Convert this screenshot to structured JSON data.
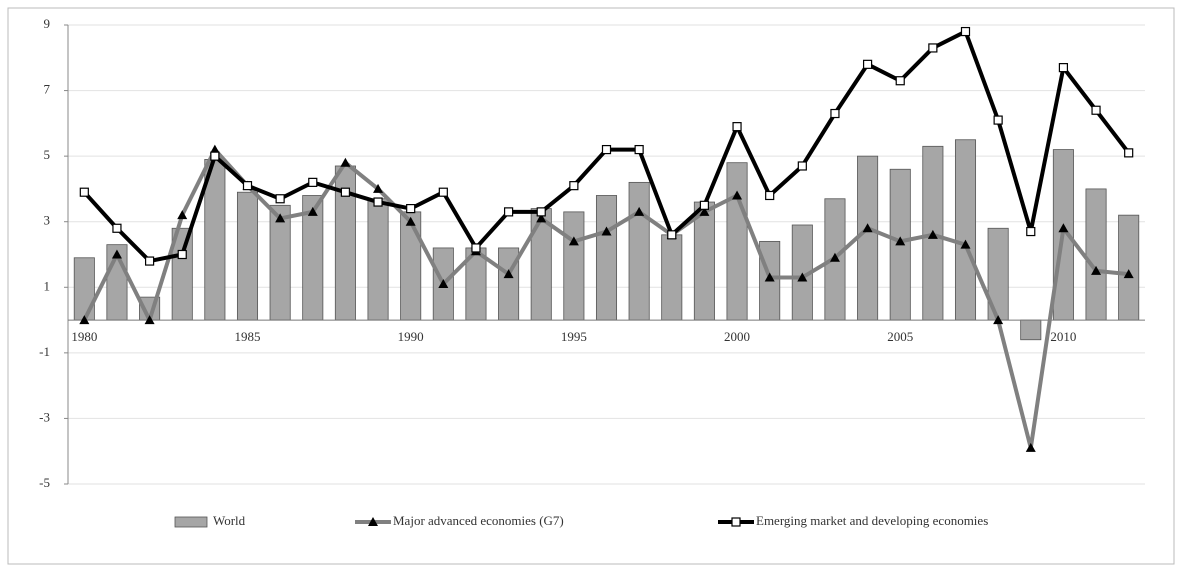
{
  "chart_data": {
    "type": "combo",
    "x": [
      1980,
      1981,
      1982,
      1983,
      1984,
      1985,
      1986,
      1987,
      1988,
      1989,
      1990,
      1991,
      1992,
      1993,
      1994,
      1995,
      1996,
      1997,
      1998,
      1999,
      2000,
      2001,
      2002,
      2003,
      2004,
      2005,
      2006,
      2007,
      2008,
      2009,
      2010,
      2011,
      2012
    ],
    "xlim": [
      1979.5,
      2012.5
    ],
    "xticks": [
      1980,
      1985,
      1990,
      1995,
      2000,
      2005,
      2010
    ],
    "ylim": [
      -5,
      9
    ],
    "yticks": [
      -5,
      -3,
      -1,
      1,
      3,
      5,
      7,
      9
    ],
    "grid": true,
    "series": [
      {
        "name": "World",
        "type": "bar",
        "color": "#a6a6a6",
        "values": [
          1.9,
          2.3,
          0.7,
          2.8,
          4.9,
          3.9,
          3.5,
          3.8,
          4.7,
          3.7,
          3.3,
          2.2,
          2.2,
          2.2,
          3.4,
          3.3,
          3.8,
          4.2,
          2.6,
          3.6,
          4.8,
          2.4,
          2.9,
          3.7,
          5.0,
          4.6,
          5.3,
          5.5,
          2.8,
          -0.6,
          5.2,
          4.0,
          3.2
        ]
      },
      {
        "name": "Major advanced economies (G7)",
        "type": "line",
        "marker": "triangle",
        "color": "#808080",
        "values": [
          0.0,
          2.0,
          0.0,
          3.2,
          5.2,
          4.1,
          3.1,
          3.3,
          4.8,
          4.0,
          3.0,
          1.1,
          2.1,
          1.4,
          3.1,
          2.4,
          2.7,
          3.3,
          2.6,
          3.3,
          3.8,
          1.3,
          1.3,
          1.9,
          2.8,
          2.4,
          2.6,
          2.3,
          0.0,
          -3.9,
          2.8,
          1.5,
          1.4
        ]
      },
      {
        "name": "Emerging market and developing economies",
        "type": "line",
        "marker": "square",
        "color": "#000000",
        "values": [
          3.9,
          2.8,
          1.8,
          2.0,
          5.0,
          4.1,
          3.7,
          4.2,
          3.9,
          3.6,
          3.4,
          3.9,
          2.2,
          3.3,
          3.3,
          4.1,
          5.2,
          5.2,
          2.6,
          3.5,
          5.9,
          3.8,
          4.7,
          6.3,
          7.8,
          7.3,
          8.3,
          8.8,
          6.1,
          2.7,
          7.7,
          6.4,
          5.1
        ]
      }
    ]
  }
}
